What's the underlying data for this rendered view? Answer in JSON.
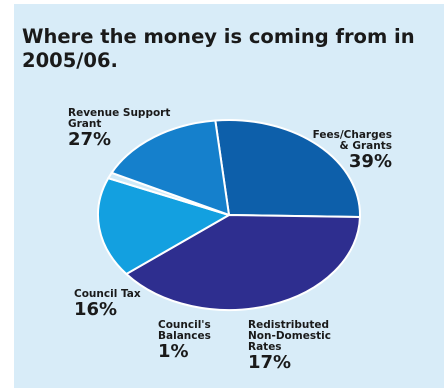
{
  "title": "Where the money is coming from in 2005/06.",
  "colors": {
    "background": "#d8ecf8",
    "revenue_support_grant": "#0d5faa",
    "fees_charges_grants": "#2e2e8f",
    "redistributed_non_domestic_rates": "#13a0e0",
    "councils_balances": "#cfeaf8",
    "council_tax": "#1580cc"
  },
  "chart_data": {
    "type": "pie",
    "title": "Where the money is coming from in 2005/06.",
    "categories": [
      "Revenue Support Grant",
      "Fees/Charges & Grants",
      "Redistributed Non-Domestic Rates",
      "Council's Balances",
      "Council Tax"
    ],
    "values": [
      27,
      39,
      17,
      1,
      16
    ],
    "labels": [
      {
        "lines": [
          "Revenue Support",
          "Grant"
        ],
        "pct": "27%"
      },
      {
        "lines": [
          "Fees/Charges",
          "& Grants"
        ],
        "pct": "39%"
      },
      {
        "lines": [
          "Redistributed",
          "Non-Domestic",
          "Rates"
        ],
        "pct": "17%"
      },
      {
        "lines": [
          "Council's",
          "Balances"
        ],
        "pct": "1%"
      },
      {
        "lines": [
          "Council Tax"
        ],
        "pct": "16%"
      }
    ],
    "legend": "none"
  }
}
